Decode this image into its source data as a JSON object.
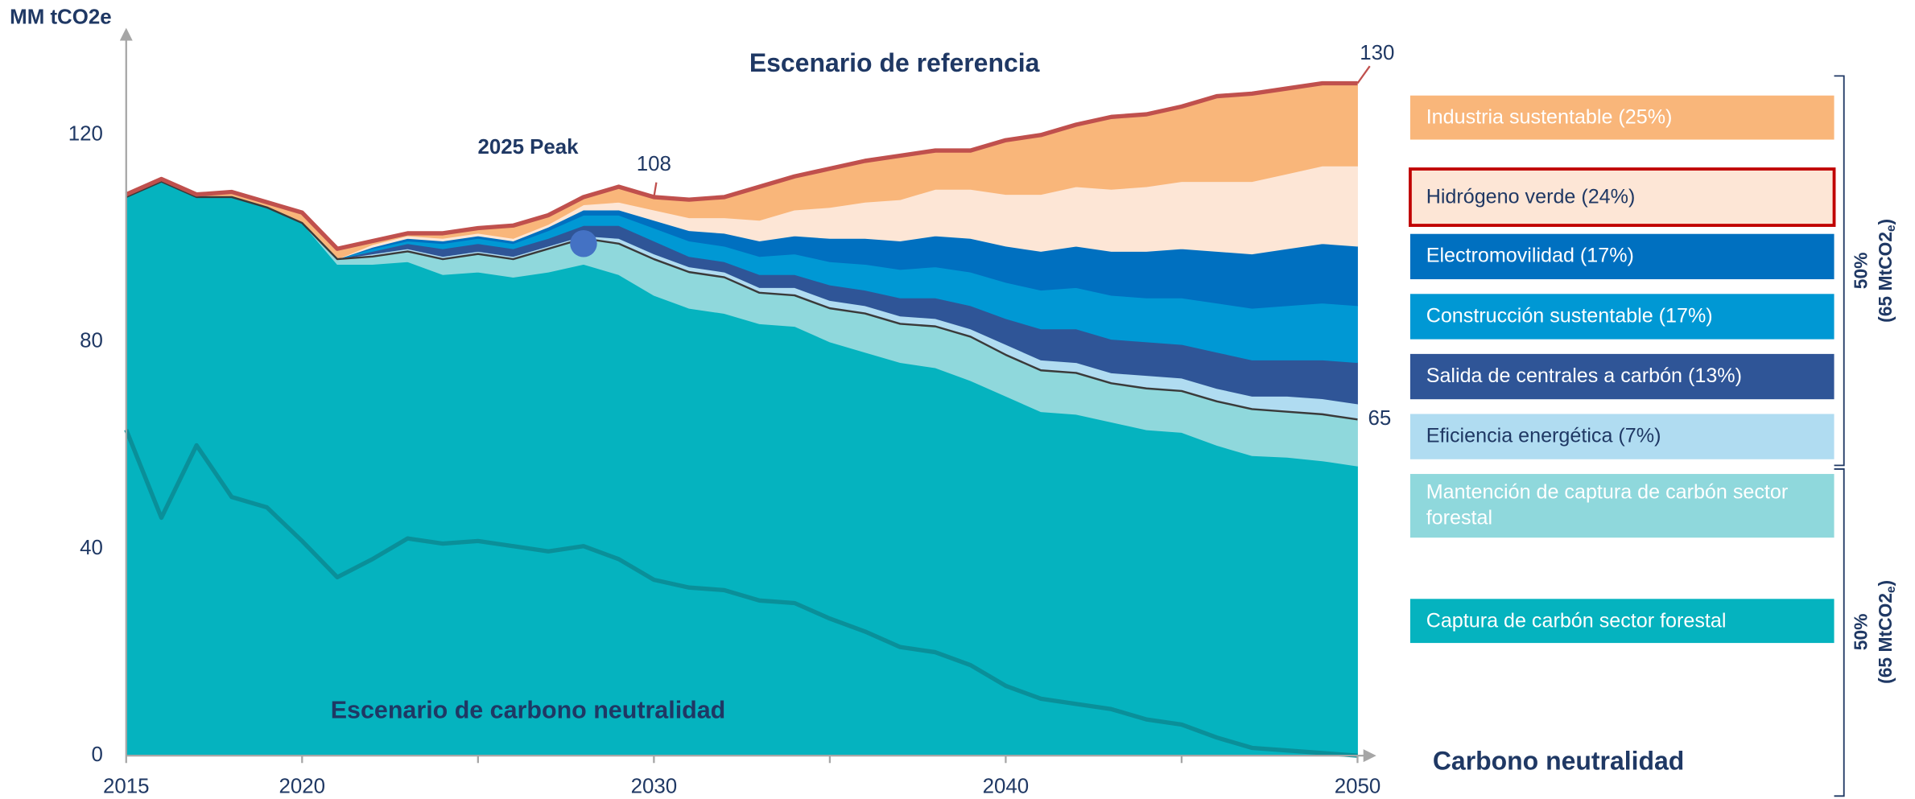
{
  "chart_data": {
    "type": "stacked_area",
    "y_axis_label": "MM tCO2e",
    "title": "Escenario de referencia",
    "subtitle": "Escenario de carbono neutralidad",
    "end_label": "Carbono neutralidad",
    "xlim": [
      2015,
      2050
    ],
    "ylim": [
      0,
      139
    ],
    "xticks": [
      2015,
      2020,
      2030,
      2040,
      2050
    ],
    "xminor_ticks": [
      2025,
      2035,
      2045
    ],
    "yticks": [
      0,
      40,
      80,
      120
    ],
    "grid": false,
    "x": [
      2015,
      2016,
      2017,
      2018,
      2019,
      2020,
      2021,
      2022,
      2023,
      2024,
      2025,
      2026,
      2027,
      2028,
      2029,
      2030,
      2031,
      2032,
      2033,
      2034,
      2035,
      2036,
      2037,
      2038,
      2039,
      2040,
      2041,
      2042,
      2043,
      2044,
      2045,
      2046,
      2047,
      2048,
      2049,
      2050
    ],
    "series": [
      {
        "color": "#05b3bf",
        "line": "#0a8f99",
        "values": [
          63,
          46,
          60,
          50,
          48,
          41.5,
          34.5,
          38,
          42,
          41,
          41.5,
          40.5,
          39.5,
          40.5,
          38,
          34,
          32.5,
          32,
          30,
          29.5,
          26.5,
          24,
          21,
          20,
          17.5,
          13.5,
          11,
          10,
          9,
          7,
          6,
          3.5,
          1.5,
          1,
          0.5,
          0
        ]
      },
      {
        "name": "Captura de carbón sector forestal",
        "color": "#05b3bf",
        "values": [
          45,
          65,
          48,
          58,
          58,
          61.5,
          60.5,
          57,
          53.5,
          52,
          52,
          52,
          54,
          54.5,
          55,
          55,
          54,
          53.5,
          53.5,
          53.5,
          53.5,
          54,
          55,
          55,
          55,
          56,
          55.5,
          56,
          55.5,
          56,
          56.5,
          56.5,
          56.5,
          56.7,
          56.5,
          56
        ]
      },
      {
        "name": "Mantención de captura de carbón sector forestal",
        "color": "#8fd8dc",
        "line": "#3a3a3a",
        "values": [
          0,
          0,
          0,
          0,
          0,
          0,
          1,
          1.5,
          2,
          3,
          3.5,
          3.5,
          4.5,
          5,
          6,
          7,
          7,
          7,
          6,
          6,
          6.5,
          7.5,
          7.5,
          8,
          8.5,
          8,
          8,
          8,
          7.5,
          8,
          8,
          8.5,
          9,
          8.8,
          9,
          9
        ]
      },
      {
        "name": "Eficiencia energética (7%)",
        "color": "#b0dcf1",
        "values": [
          0,
          0,
          0,
          0,
          0,
          0,
          0,
          0.5,
          0.5,
          0.5,
          0.5,
          0.5,
          0.5,
          0.5,
          1,
          1,
          1,
          1,
          1,
          1.5,
          1.5,
          1.5,
          1.5,
          1.5,
          1.5,
          2,
          2,
          2,
          2,
          2.5,
          2.5,
          2.5,
          2.5,
          3,
          3,
          3
        ]
      },
      {
        "name": "Salida de centrales a carbón (13%)",
        "color": "#2f5597",
        "values": [
          0,
          0,
          0,
          0,
          0,
          0,
          0,
          0.5,
          1,
          1.5,
          1.5,
          1.5,
          1.5,
          2,
          2.5,
          2.5,
          2,
          2,
          2.5,
          2.5,
          3,
          3,
          3.5,
          4,
          4.5,
          5,
          6,
          6.5,
          6.5,
          6.5,
          6.5,
          7,
          7,
          7,
          7.5,
          8
        ]
      },
      {
        "name": "Construcción sustentable (17%)",
        "color": "#0098d4",
        "values": [
          0,
          0,
          0,
          0,
          0,
          0,
          0,
          0.5,
          0.5,
          1,
          1,
          1,
          1.5,
          2,
          2,
          2.5,
          3,
          3,
          3.5,
          4,
          4.5,
          5,
          5.5,
          6,
          6.5,
          7,
          7.5,
          8,
          8.5,
          8.5,
          9,
          9.5,
          10,
          10.5,
          11,
          11
        ]
      },
      {
        "name": "Electromovilidad (17%)",
        "color": "#0070c0",
        "values": [
          0,
          0,
          0,
          0,
          0,
          0,
          0,
          0.3,
          0.5,
          0.5,
          0.5,
          0.5,
          0.7,
          1,
          1,
          1.5,
          2,
          2.5,
          3,
          3.5,
          4.5,
          5,
          5.5,
          6,
          6.5,
          7,
          7.5,
          8,
          8.5,
          9,
          9.5,
          10,
          10.5,
          11,
          11.5,
          11.5
        ]
      },
      {
        "name": "Hidrógeno verde (24%)",
        "color": "#fde6d6",
        "highlighted": true,
        "values": [
          0,
          0,
          0,
          0,
          0,
          0,
          0,
          0.5,
          0.5,
          0.5,
          0.5,
          0.5,
          0.5,
          1,
          1.5,
          2,
          2.5,
          3,
          4,
          5,
          6,
          7,
          8,
          9,
          9.5,
          10,
          11,
          11.5,
          12,
          12.5,
          13,
          13.5,
          14,
          14.5,
          15,
          15.5
        ]
      },
      {
        "name": "Industria sustentable (25%)",
        "color": "#f9b67a",
        "line": "#c0504d",
        "values": [
          0.5,
          0.5,
          0.5,
          1,
          1,
          2,
          2,
          0.7,
          0.5,
          1,
          1,
          2.5,
          1.8,
          1.5,
          3,
          2.5,
          3.5,
          4,
          6.5,
          6.5,
          7.5,
          8,
          8.5,
          7.5,
          7.5,
          10.5,
          11.5,
          12,
          14,
          14,
          14.5,
          16.5,
          17,
          16.5,
          16,
          16
        ]
      }
    ],
    "highlight_color": "#c00000",
    "annotations": [
      {
        "text": "130",
        "x": 2050,
        "y": 130
      },
      {
        "text": "108",
        "x": 2030,
        "y": 108
      },
      {
        "text": "65",
        "x": 2050,
        "y": 65
      }
    ],
    "peak": {
      "label": "2025 Peak",
      "x": 2028,
      "y": 99,
      "color": "#4472c4"
    },
    "brackets": [
      {
        "pct": "50%",
        "amount": "(65 MtCO2",
        "sub": "e",
        "close": ")"
      },
      {
        "pct": "50%",
        "amount": "(65 MtCO2",
        "sub": "e",
        "close": ")"
      }
    ]
  }
}
